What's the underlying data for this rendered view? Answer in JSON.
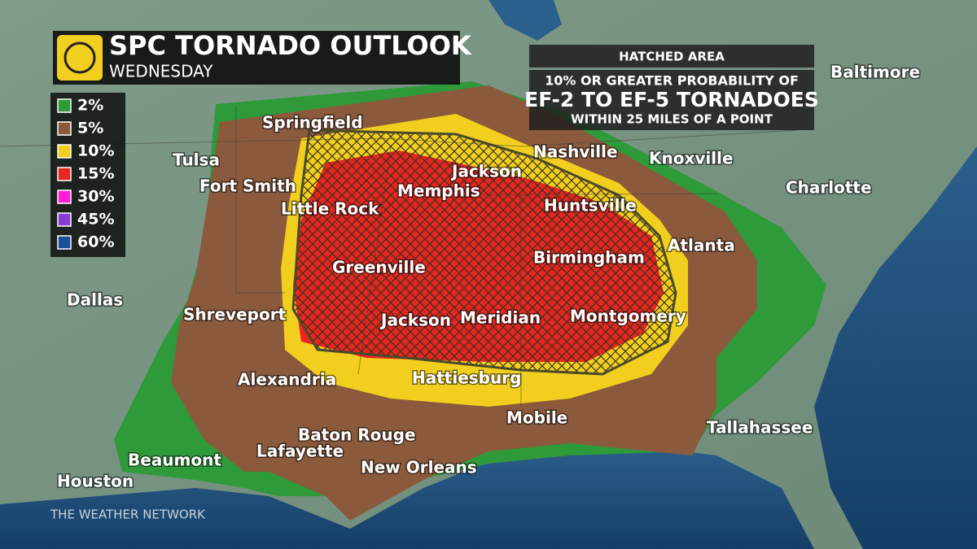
{
  "header": {
    "title": "SPC TORNADO OUTLOOK",
    "subtitle": "WEDNESDAY"
  },
  "legend": [
    {
      "label": "2%",
      "color": "#2f9a3a"
    },
    {
      "label": "5%",
      "color": "#8b5a3c"
    },
    {
      "label": "10%",
      "color": "#f2cf1e"
    },
    {
      "label": "15%",
      "color": "#e8251f"
    },
    {
      "label": "30%",
      "color": "#ff1ed8"
    },
    {
      "label": "45%",
      "color": "#8a3ad6"
    },
    {
      "label": "60%",
      "color": "#1a4f9a"
    }
  ],
  "hatched_note": {
    "heading": "HATCHED AREA",
    "line1": "10% OR GREATER PROBABILITY OF",
    "line2": "EF-2 TO EF-5 TORNADOES",
    "line3": "WITHIN 25 MILES OF A POINT"
  },
  "cities": [
    "Baltimore",
    "Springfield",
    "Tulsa",
    "Fort Smith",
    "Little Rock",
    "Memphis",
    "Jackson",
    "Nashville",
    "Knoxville",
    "Charlotte",
    "Huntsville",
    "Atlanta",
    "Birmingham",
    "Greenville",
    "Dallas",
    "Shreveport",
    "Jackson",
    "Meridian",
    "Montgomery",
    "Alexandria",
    "Hattiesburg",
    "Mobile",
    "Tallahassee",
    "Baton Rouge",
    "Lafayette",
    "Beaumont",
    "New Orleans",
    "Houston"
  ],
  "footer": "THE WEATHER NETWORK"
}
